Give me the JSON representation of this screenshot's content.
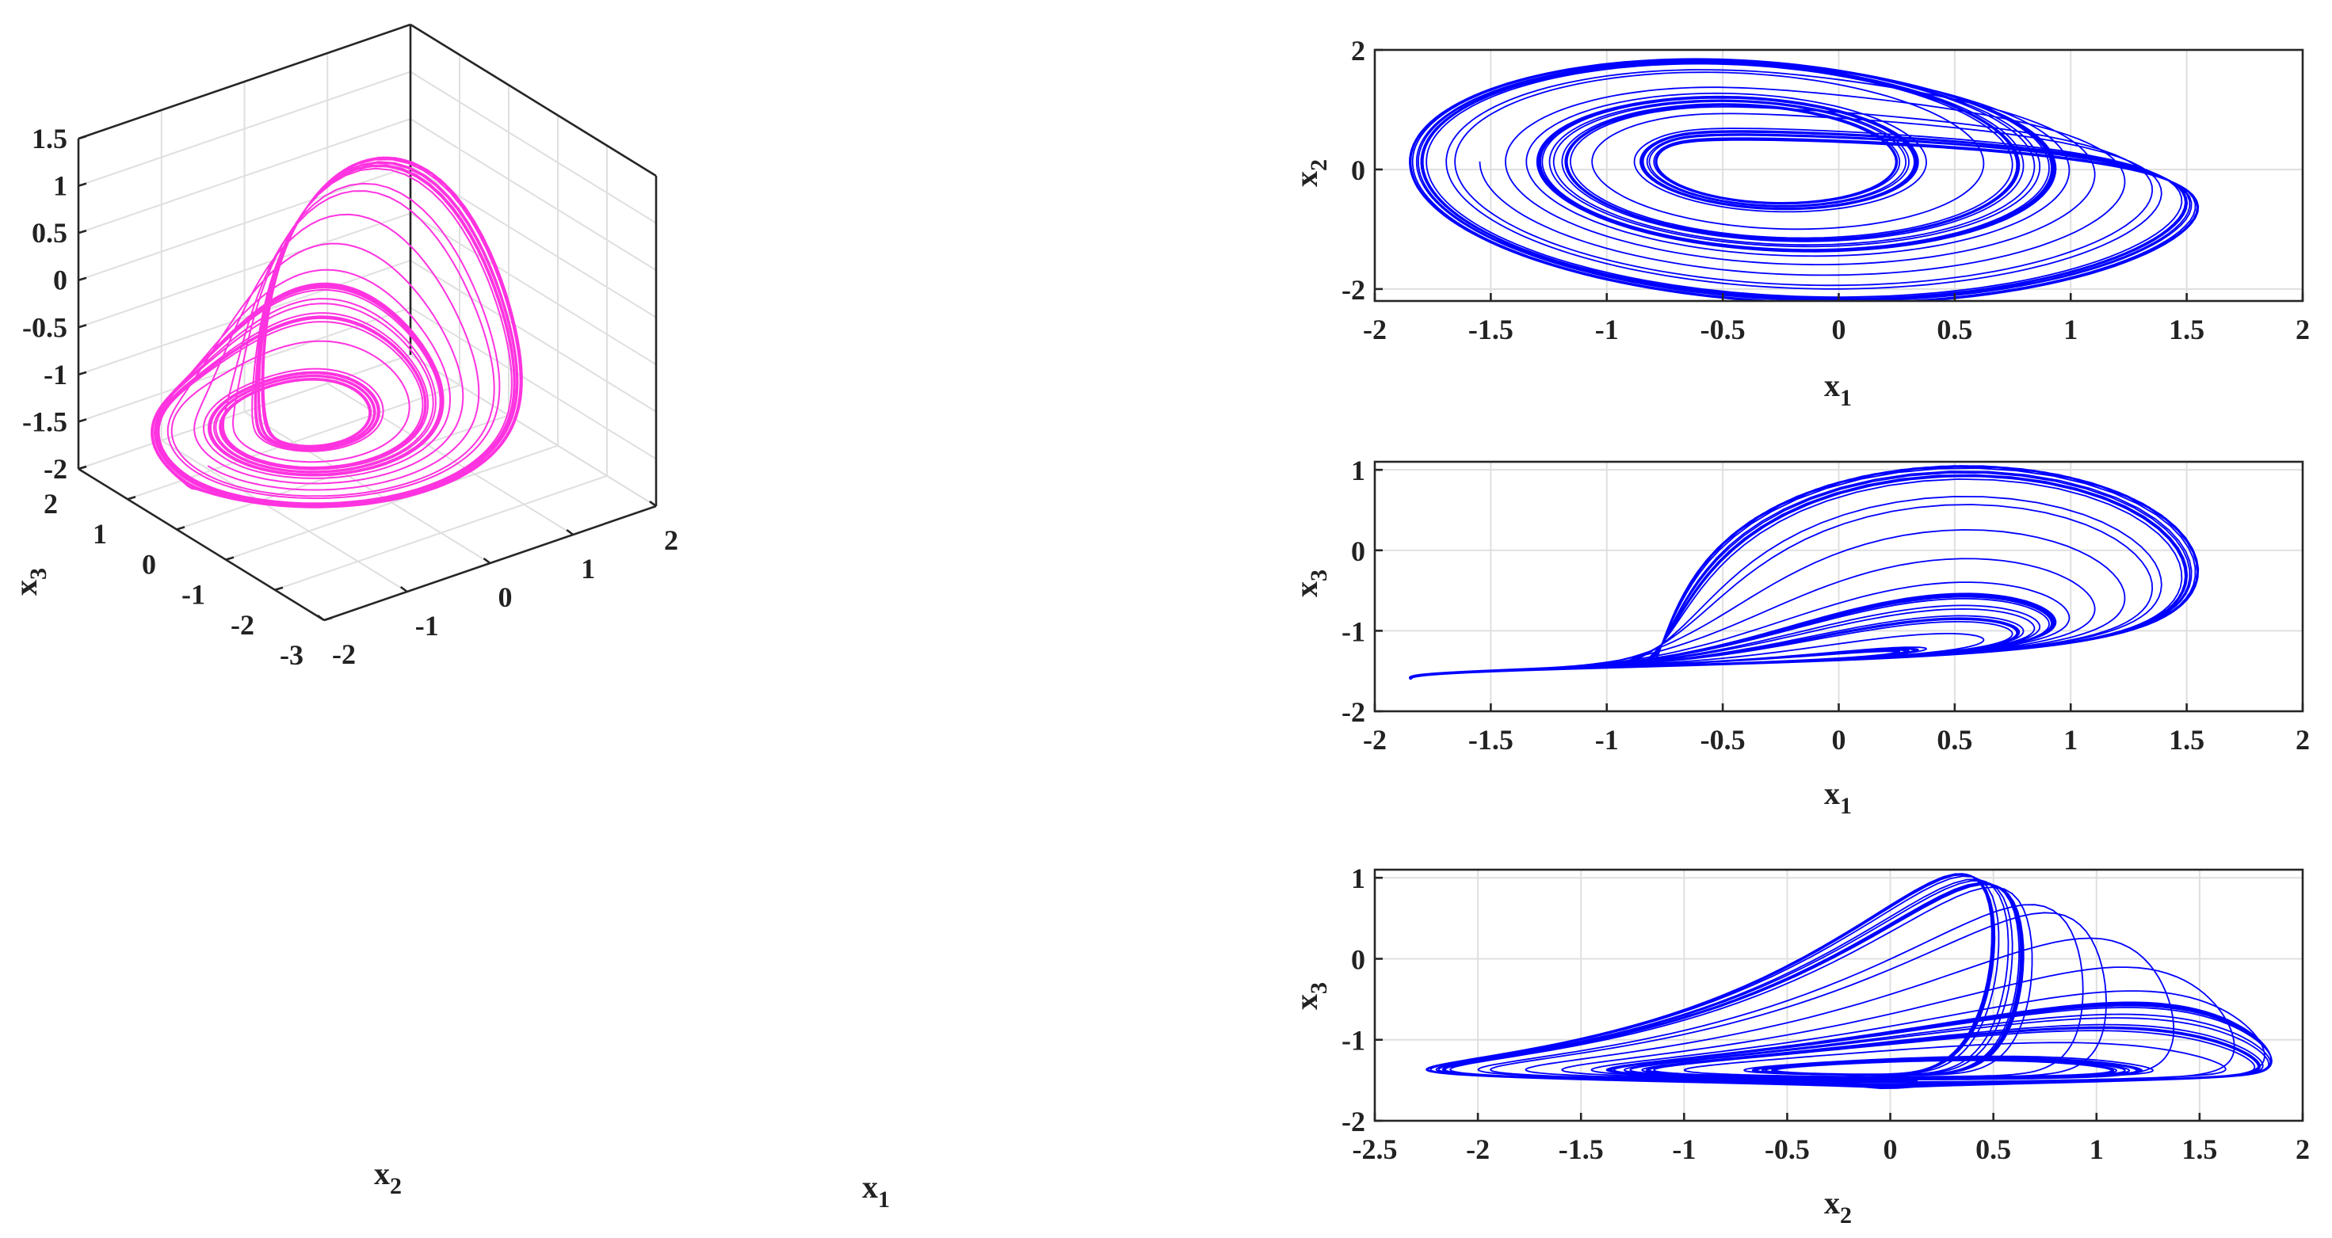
{
  "chart_data": [
    {
      "type": "line3d",
      "xlabel": "x",
      "xlabel_sub": "1",
      "ylabel": "x",
      "ylabel_sub": "2",
      "zlabel": "x",
      "zlabel_sub": "3",
      "xlim": [
        -2,
        2
      ],
      "ylim": [
        -3,
        2
      ],
      "zlim": [
        -2,
        1.5
      ],
      "xticks": [
        "-2",
        "-1",
        "0",
        "1",
        "2"
      ],
      "yticks": [
        "-3",
        "-2",
        "-1",
        "0",
        "1",
        "2"
      ],
      "zticks": [
        "-2",
        "-1.5",
        "-1",
        "-0.5",
        "0",
        "0.5",
        "1",
        "1.5"
      ],
      "grid": true,
      "colors": {
        "line": "#ff33e0"
      }
    },
    {
      "type": "line",
      "xlabel": "x",
      "xlabel_sub": "1",
      "ylabel": "x",
      "ylabel_sub": "2",
      "xlim": [
        -2,
        2
      ],
      "ylim": [
        -2.2,
        2
      ],
      "xticks": [
        "-2",
        "-1.5",
        "-1",
        "-0.5",
        "0",
        "0.5",
        "1",
        "1.5",
        "2"
      ],
      "yticks": [
        "-2",
        "0",
        "2"
      ],
      "grid": true,
      "colors": {
        "line": "#0000ff"
      }
    },
    {
      "type": "line",
      "xlabel": "x",
      "xlabel_sub": "1",
      "ylabel": "x",
      "ylabel_sub": "3",
      "xlim": [
        -2,
        2
      ],
      "ylim": [
        -2,
        1.1
      ],
      "xticks": [
        "-2",
        "-1.5",
        "-1",
        "-0.5",
        "0",
        "0.5",
        "1",
        "1.5",
        "2"
      ],
      "yticks": [
        "-2",
        "-1",
        "0",
        "1"
      ],
      "grid": true,
      "colors": {
        "line": "#0000ff"
      }
    },
    {
      "type": "line",
      "xlabel": "x",
      "xlabel_sub": "2",
      "ylabel": "x",
      "ylabel_sub": "3",
      "xlim": [
        -2.5,
        2
      ],
      "ylim": [
        -2,
        1.1
      ],
      "xticks": [
        "-2.5",
        "-2",
        "-1.5",
        "-1",
        "-0.5",
        "0",
        "0.5",
        "1",
        "1.5",
        "2"
      ],
      "yticks": [
        "-2",
        "-1",
        "0",
        "1"
      ],
      "grid": true,
      "colors": {
        "line": "#0000ff"
      }
    }
  ]
}
